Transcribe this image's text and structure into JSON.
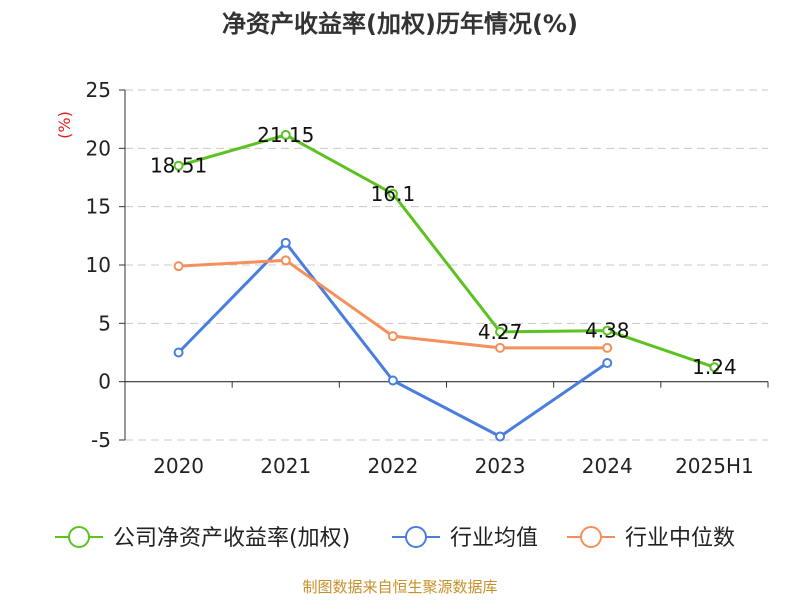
{
  "source_text": "制图数据来自恒生聚源数据库",
  "chart_data": {
    "type": "line",
    "title": "净资产收益率(加权)历年情况(%)",
    "ylabel": "(%)",
    "xlabel": "",
    "categories": [
      "2020",
      "2021",
      "2022",
      "2023",
      "2024",
      "2025H1"
    ],
    "ylim": [
      -5,
      25
    ],
    "yticks": [
      -5,
      0,
      5,
      10,
      15,
      20,
      25
    ],
    "grid": true,
    "legend_position": "bottom",
    "series": [
      {
        "name": "公司净资产收益率(加权)",
        "color": "#5cc220",
        "values": [
          18.51,
          21.15,
          16.1,
          4.27,
          4.38,
          1.24
        ],
        "labels": [
          "18.51",
          "21.15",
          "16.1",
          "4.27",
          "4.38",
          "1.24"
        ]
      },
      {
        "name": "行业均值",
        "color": "#4a7ede",
        "values": [
          2.5,
          11.9,
          0.1,
          -4.7,
          1.6,
          null
        ]
      },
      {
        "name": "行业中位数",
        "color": "#f5905a",
        "values": [
          9.9,
          10.4,
          3.9,
          2.9,
          2.9,
          null
        ]
      }
    ]
  }
}
